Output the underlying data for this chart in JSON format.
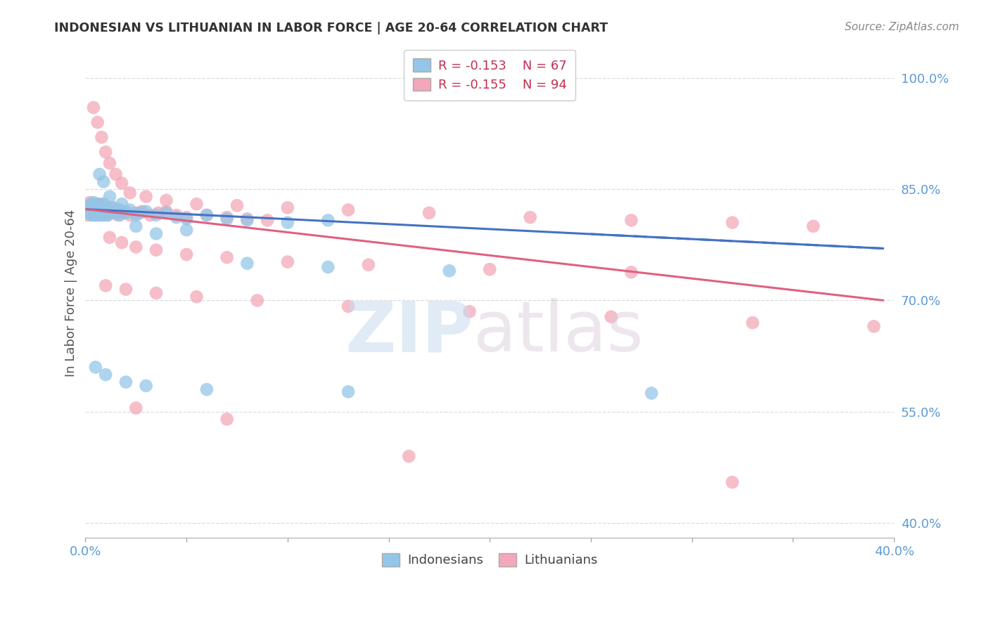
{
  "title": "INDONESIAN VS LITHUANIAN IN LABOR FORCE | AGE 20-64 CORRELATION CHART",
  "source": "Source: ZipAtlas.com",
  "ylabel": "In Labor Force | Age 20-64",
  "legend_blue_r": "R = -0.153",
  "legend_blue_n": "N = 67",
  "legend_pink_r": "R = -0.155",
  "legend_pink_n": "N = 94",
  "legend_label_blue": "Indonesians",
  "legend_label_pink": "Lithuanians",
  "xlim": [
    0.0,
    0.4
  ],
  "ylim": [
    0.38,
    1.04
  ],
  "xtick_positions": [
    0.0,
    0.05,
    0.1,
    0.15,
    0.2,
    0.25,
    0.3,
    0.35,
    0.4
  ],
  "xtick_labels": [
    "0.0%",
    "",
    "",
    "",
    "",
    "",
    "",
    "",
    "40.0%"
  ],
  "yticks_right": [
    1.0,
    0.85,
    0.7,
    0.55,
    0.4
  ],
  "ytick_labels_right": [
    "100.0%",
    "85.0%",
    "70.0%",
    "55.0%",
    "40.0%"
  ],
  "color_blue": "#94C6E7",
  "color_pink": "#F2A8B8",
  "color_trend_blue": "#4472C4",
  "color_trend_pink": "#E06080",
  "color_trend_pink_dash": "#D0A0B0",
  "bg_color": "#FFFFFF",
  "grid_color": "#DDDDDD",
  "title_color": "#333333",
  "axis_label_color": "#5B9BD5",
  "ylabel_color": "#555555",
  "trend_blue_x0": 0.0,
  "trend_blue_x1": 0.395,
  "trend_blue_y0": 0.823,
  "trend_blue_y1": 0.77,
  "trend_pink_solid_x0": 0.0,
  "trend_pink_solid_x1": 0.395,
  "trend_pink_solid_y0": 0.823,
  "trend_pink_solid_y1": 0.7,
  "blue_x": [
    0.001,
    0.001,
    0.002,
    0.002,
    0.003,
    0.003,
    0.003,
    0.004,
    0.004,
    0.004,
    0.005,
    0.005,
    0.005,
    0.006,
    0.006,
    0.006,
    0.007,
    0.007,
    0.007,
    0.007,
    0.008,
    0.008,
    0.009,
    0.009,
    0.009,
    0.01,
    0.01,
    0.011,
    0.011,
    0.012,
    0.013,
    0.014,
    0.015,
    0.016,
    0.017,
    0.018,
    0.02,
    0.022,
    0.025,
    0.027,
    0.03,
    0.035,
    0.04,
    0.045,
    0.05,
    0.06,
    0.07,
    0.08,
    0.1,
    0.12,
    0.007,
    0.009,
    0.012,
    0.018,
    0.025,
    0.035,
    0.05,
    0.08,
    0.12,
    0.18,
    0.005,
    0.01,
    0.02,
    0.03,
    0.06,
    0.13,
    0.28
  ],
  "blue_y": [
    0.82,
    0.825,
    0.818,
    0.828,
    0.822,
    0.83,
    0.815,
    0.825,
    0.818,
    0.832,
    0.82,
    0.828,
    0.815,
    0.822,
    0.83,
    0.818,
    0.825,
    0.82,
    0.815,
    0.828,
    0.82,
    0.825,
    0.818,
    0.83,
    0.815,
    0.822,
    0.82,
    0.825,
    0.815,
    0.818,
    0.825,
    0.82,
    0.818,
    0.822,
    0.815,
    0.82,
    0.818,
    0.822,
    0.815,
    0.818,
    0.82,
    0.815,
    0.818,
    0.812,
    0.81,
    0.815,
    0.81,
    0.808,
    0.805,
    0.808,
    0.87,
    0.86,
    0.84,
    0.83,
    0.8,
    0.79,
    0.795,
    0.75,
    0.745,
    0.74,
    0.61,
    0.6,
    0.59,
    0.585,
    0.58,
    0.577,
    0.575
  ],
  "pink_x": [
    0.001,
    0.001,
    0.001,
    0.002,
    0.002,
    0.002,
    0.003,
    0.003,
    0.003,
    0.004,
    0.004,
    0.004,
    0.005,
    0.005,
    0.005,
    0.006,
    0.006,
    0.006,
    0.007,
    0.007,
    0.007,
    0.008,
    0.008,
    0.008,
    0.009,
    0.009,
    0.01,
    0.01,
    0.011,
    0.011,
    0.012,
    0.013,
    0.014,
    0.015,
    0.016,
    0.017,
    0.018,
    0.02,
    0.022,
    0.025,
    0.028,
    0.032,
    0.036,
    0.04,
    0.045,
    0.05,
    0.06,
    0.07,
    0.08,
    0.09,
    0.004,
    0.006,
    0.008,
    0.01,
    0.012,
    0.015,
    0.018,
    0.022,
    0.03,
    0.04,
    0.055,
    0.075,
    0.1,
    0.13,
    0.17,
    0.22,
    0.27,
    0.32,
    0.36,
    0.012,
    0.018,
    0.025,
    0.035,
    0.05,
    0.07,
    0.1,
    0.14,
    0.2,
    0.27,
    0.01,
    0.02,
    0.035,
    0.055,
    0.085,
    0.13,
    0.19,
    0.26,
    0.33,
    0.39,
    0.025,
    0.07,
    0.16,
    0.32
  ],
  "pink_y": [
    0.82,
    0.828,
    0.815,
    0.825,
    0.818,
    0.832,
    0.82,
    0.828,
    0.815,
    0.825,
    0.818,
    0.83,
    0.822,
    0.828,
    0.815,
    0.825,
    0.818,
    0.83,
    0.82,
    0.828,
    0.815,
    0.825,
    0.818,
    0.83,
    0.82,
    0.815,
    0.825,
    0.818,
    0.822,
    0.815,
    0.82,
    0.818,
    0.825,
    0.82,
    0.815,
    0.822,
    0.818,
    0.82,
    0.815,
    0.818,
    0.82,
    0.815,
    0.818,
    0.82,
    0.815,
    0.812,
    0.815,
    0.812,
    0.81,
    0.808,
    0.96,
    0.94,
    0.92,
    0.9,
    0.885,
    0.87,
    0.858,
    0.845,
    0.84,
    0.835,
    0.83,
    0.828,
    0.825,
    0.822,
    0.818,
    0.812,
    0.808,
    0.805,
    0.8,
    0.785,
    0.778,
    0.772,
    0.768,
    0.762,
    0.758,
    0.752,
    0.748,
    0.742,
    0.738,
    0.72,
    0.715,
    0.71,
    0.705,
    0.7,
    0.692,
    0.685,
    0.678,
    0.67,
    0.665,
    0.555,
    0.54,
    0.49,
    0.455
  ]
}
